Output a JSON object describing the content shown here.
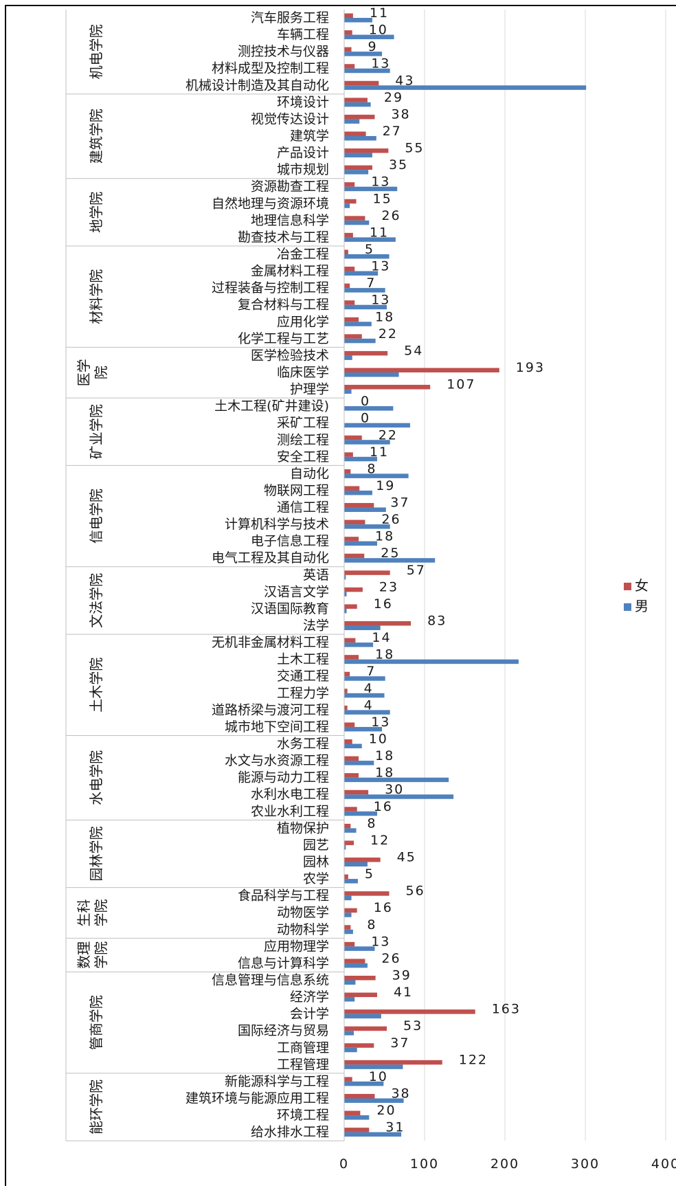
{
  "chart_data": {
    "type": "bar",
    "orientation": "horizontal",
    "title": "",
    "xlabel": "",
    "ylabel": "",
    "xlim": [
      0,
      400
    ],
    "xticks": [
      0,
      100,
      200,
      300,
      400
    ],
    "grid": true,
    "legend_position": "right",
    "series": [
      {
        "name": "女",
        "color": "#c0504d"
      },
      {
        "name": "男",
        "color": "#4f81bd"
      }
    ],
    "groups": [
      {
        "college": "机电学院",
        "majors": [
          {
            "name": "汽车服务工程",
            "female": 11,
            "male": 35
          },
          {
            "name": "车辆工程",
            "female": 10,
            "male": 62
          },
          {
            "name": "测控技术与仪器",
            "female": 9,
            "male": 47
          },
          {
            "name": "材料成型及控制工程",
            "female": 13,
            "male": 57
          },
          {
            "name": "机械设计制造及其自动化",
            "female": 43,
            "male": 301
          }
        ]
      },
      {
        "college": "建筑学院",
        "majors": [
          {
            "name": "环境设计",
            "female": 29,
            "male": 33
          },
          {
            "name": "视觉传达设计",
            "female": 38,
            "male": 19
          },
          {
            "name": "建筑学",
            "female": 27,
            "male": 40
          },
          {
            "name": "产品设计",
            "female": 55,
            "male": 35
          },
          {
            "name": "城市规划",
            "female": 35,
            "male": 30
          }
        ]
      },
      {
        "college": "地学院",
        "majors": [
          {
            "name": "资源勘查工程",
            "female": 13,
            "male": 66
          },
          {
            "name": "自然地理与资源环境",
            "female": 15,
            "male": 7
          },
          {
            "name": "地理信息科学",
            "female": 26,
            "male": 31
          },
          {
            "name": "勘查技术与工程",
            "female": 11,
            "male": 64
          }
        ]
      },
      {
        "college": "材料学院",
        "majors": [
          {
            "name": "冶金工程",
            "female": 5,
            "male": 56
          },
          {
            "name": "金属材料工程",
            "female": 13,
            "male": 42
          },
          {
            "name": "过程装备与控制工程",
            "female": 7,
            "male": 51
          },
          {
            "name": "复合材料与工程",
            "female": 13,
            "male": 53
          },
          {
            "name": "应用化学",
            "female": 18,
            "male": 34
          },
          {
            "name": "化学工程与工艺",
            "female": 22,
            "male": 39
          }
        ]
      },
      {
        "college": "医学院",
        "majors": [
          {
            "name": "医学检验技术",
            "female": 54,
            "male": 10
          },
          {
            "name": "临床医学",
            "female": 193,
            "male": 68
          },
          {
            "name": "护理学",
            "female": 107,
            "male": 9
          }
        ]
      },
      {
        "college": "矿业学院",
        "majors": [
          {
            "name": "土木工程(矿井建设)",
            "female": 0,
            "male": 61
          },
          {
            "name": "采矿工程",
            "female": 0,
            "male": 82
          },
          {
            "name": "测绘工程",
            "female": 22,
            "male": 57
          },
          {
            "name": "安全工程",
            "female": 11,
            "male": 41
          }
        ]
      },
      {
        "college": "信电学院",
        "majors": [
          {
            "name": "自动化",
            "female": 8,
            "male": 80
          },
          {
            "name": "物联网工程",
            "female": 19,
            "male": 35
          },
          {
            "name": "通信工程",
            "female": 37,
            "male": 52
          },
          {
            "name": "计算机科学与技术",
            "female": 26,
            "male": 57
          },
          {
            "name": "电子信息工程",
            "female": 18,
            "male": 41
          },
          {
            "name": "电气工程及其自动化",
            "female": 25,
            "male": 113
          }
        ]
      },
      {
        "college": "文法学院",
        "majors": [
          {
            "name": "英语",
            "female": 57,
            "male": 2
          },
          {
            "name": "汉语言文学",
            "female": 23,
            "male": 3
          },
          {
            "name": "汉语国际教育",
            "female": 16,
            "male": 3
          },
          {
            "name": "法学",
            "female": 83,
            "male": 45
          }
        ]
      },
      {
        "college": "土木学院",
        "majors": [
          {
            "name": "无机非金属材料工程",
            "female": 14,
            "male": 36
          },
          {
            "name": "土木工程",
            "female": 18,
            "male": 217
          },
          {
            "name": "交通工程",
            "female": 7,
            "male": 51
          },
          {
            "name": "工程力学",
            "female": 4,
            "male": 50
          },
          {
            "name": "道路桥梁与渡河工程",
            "female": 4,
            "male": 57
          },
          {
            "name": "城市地下空间工程",
            "female": 13,
            "male": 47
          }
        ]
      },
      {
        "college": "水电学院",
        "majors": [
          {
            "name": "水务工程",
            "female": 10,
            "male": 22
          },
          {
            "name": "水文与水资源工程",
            "female": 18,
            "male": 37
          },
          {
            "name": "能源与动力工程",
            "female": 18,
            "male": 130
          },
          {
            "name": "水利水电工程",
            "female": 30,
            "male": 136
          },
          {
            "name": "农业水利工程",
            "female": 16,
            "male": 41
          }
        ]
      },
      {
        "college": "园林学院",
        "majors": [
          {
            "name": "植物保护",
            "female": 8,
            "male": 15
          },
          {
            "name": "园艺",
            "female": 12,
            "male": 2
          },
          {
            "name": "园林",
            "female": 45,
            "male": 29
          },
          {
            "name": "农学",
            "female": 5,
            "male": 17
          }
        ]
      },
      {
        "college": "生科学院",
        "majors": [
          {
            "name": "食品科学与工程",
            "female": 56,
            "male": 9
          },
          {
            "name": "动物医学",
            "female": 16,
            "male": 9
          },
          {
            "name": "动物科学",
            "female": 8,
            "male": 11
          }
        ]
      },
      {
        "college": "数理学院",
        "majors": [
          {
            "name": "应用物理学",
            "female": 13,
            "male": 38
          },
          {
            "name": "信息与计算科学",
            "female": 26,
            "male": 29
          }
        ]
      },
      {
        "college": "管商学院",
        "majors": [
          {
            "name": "信息管理与信息系统",
            "female": 39,
            "male": 14
          },
          {
            "name": "经济学",
            "female": 41,
            "male": 13
          },
          {
            "name": "会计学",
            "female": 163,
            "male": 46
          },
          {
            "name": "国际经济与贸易",
            "female": 53,
            "male": 12
          },
          {
            "name": "工商管理",
            "female": 37,
            "male": 16
          },
          {
            "name": "工程管理",
            "female": 122,
            "male": 73
          }
        ]
      },
      {
        "college": "能环学院",
        "majors": [
          {
            "name": "新能源科学与工程",
            "female": 10,
            "male": 49
          },
          {
            "name": "建筑环境与能源应用工程",
            "female": 38,
            "male": 74
          },
          {
            "name": "环境工程",
            "female": 20,
            "male": 31
          },
          {
            "name": "给水排水工程",
            "female": 31,
            "male": 71
          }
        ]
      }
    ]
  }
}
